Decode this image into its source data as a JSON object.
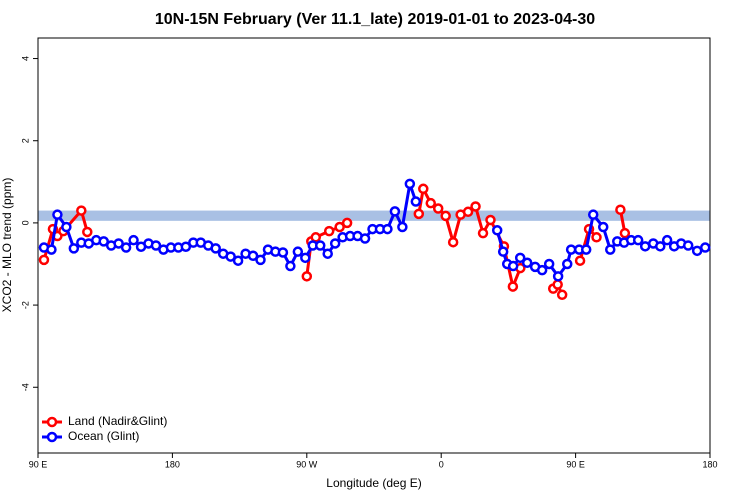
{
  "chart_data": {
    "type": "line",
    "title": "10N-15N February (Ver 11.1_late)   2019-01-01 to 2023-04-30",
    "x_label": "Longitude (deg E)",
    "y_label": "XCO2 - MLO trend (ppm)",
    "xlim": [
      -270,
      180
    ],
    "ylim": [
      -5.6,
      4.5
    ],
    "xticks": [
      {
        "value": -270,
        "label": "90 E"
      },
      {
        "value": -180,
        "label": "180"
      },
      {
        "value": -90,
        "label": "90 W"
      },
      0,
      {
        "value": 90,
        "label": "90 E"
      },
      180
    ],
    "yticks": [
      -4,
      -2,
      0,
      2,
      4
    ],
    "band": {
      "ymin": 0.05,
      "ymax": 0.3,
      "color": "#a9c0e4"
    },
    "legend": "bottom-left",
    "series": [
      {
        "name": "Land (Nadir&Glint)",
        "color": "#ff0000",
        "x": [
          -266,
          -260,
          -257,
          -253,
          -241,
          -237,
          -160,
          -90,
          -87,
          -84,
          -75,
          -68,
          -63,
          -20,
          -15,
          -12,
          -7,
          -2,
          3,
          8,
          13,
          18,
          23,
          28,
          33,
          42,
          48,
          53,
          65,
          75,
          78,
          81,
          86,
          93,
          99,
          104,
          112,
          120,
          123
        ],
        "values": [
          -0.9,
          -0.15,
          -0.32,
          -0.2,
          0.3,
          -0.22,
          null,
          -1.3,
          -0.45,
          -0.35,
          -0.2,
          -0.1,
          0.0,
          null,
          0.22,
          0.83,
          0.48,
          0.35,
          0.17,
          -0.47,
          0.2,
          0.27,
          0.4,
          -0.25,
          0.07,
          -0.57,
          -1.55,
          -1.1,
          null,
          -1.6,
          -1.5,
          -1.75,
          null,
          -0.92,
          -0.15,
          -0.35,
          null,
          0.32,
          -0.25
        ]
      },
      {
        "name": "Ocean (Glint)",
        "color": "#0000ff",
        "x": [
          -266,
          -261,
          -257,
          -251,
          -246,
          -241,
          -236,
          -231,
          -226,
          -221,
          -216,
          -211,
          -206,
          -201,
          -196,
          -191,
          -186,
          -181,
          -176,
          -171,
          -166,
          -161,
          -156,
          -151,
          -146,
          -141,
          -136,
          -131,
          -126,
          -121,
          -116,
          -111,
          -106,
          -101,
          -96,
          -91,
          -86,
          -81,
          -76,
          -71,
          -66,
          -61,
          -56,
          -51,
          -46,
          -41,
          -36,
          -31,
          -26,
          -21,
          -17,
          10,
          37.5,
          41.5,
          44.2,
          48.2,
          52.9,
          57.6,
          62.9,
          67.6,
          72.3,
          78.3,
          84.4,
          87,
          92.4,
          97.1,
          101.8,
          108.5,
          113.2,
          117.9,
          122.5,
          127.2,
          131.9,
          136.6,
          142,
          146.7,
          151.3,
          156,
          160.7,
          165.4,
          171.4,
          176.8
        ],
        "values": [
          -0.6,
          -0.65,
          0.2,
          -0.1,
          -0.62,
          -0.48,
          -0.5,
          -0.42,
          -0.45,
          -0.55,
          -0.5,
          -0.6,
          -0.42,
          -0.58,
          -0.5,
          -0.55,
          -0.65,
          -0.6,
          -0.6,
          -0.58,
          -0.48,
          -0.48,
          -0.55,
          -0.62,
          -0.75,
          -0.82,
          -0.92,
          -0.75,
          -0.8,
          -0.9,
          -0.65,
          -0.7,
          -0.72,
          -1.05,
          -0.7,
          -0.85,
          -0.55,
          -0.55,
          -0.75,
          -0.5,
          -0.35,
          -0.32,
          -0.32,
          -0.38,
          -0.15,
          -0.15,
          -0.15,
          0.28,
          -0.1,
          0.95,
          0.52,
          null,
          -0.18,
          -0.7,
          -1.0,
          -1.05,
          -0.85,
          -0.97,
          -1.07,
          -1.15,
          -1.0,
          -1.3,
          -1.0,
          -0.65,
          -0.65,
          -0.65,
          0.2,
          -0.1,
          -0.65,
          -0.45,
          -0.48,
          -0.42,
          -0.42,
          -0.57,
          -0.5,
          -0.57,
          -0.42,
          -0.57,
          -0.5,
          -0.55,
          -0.68,
          -0.6
        ]
      }
    ]
  }
}
